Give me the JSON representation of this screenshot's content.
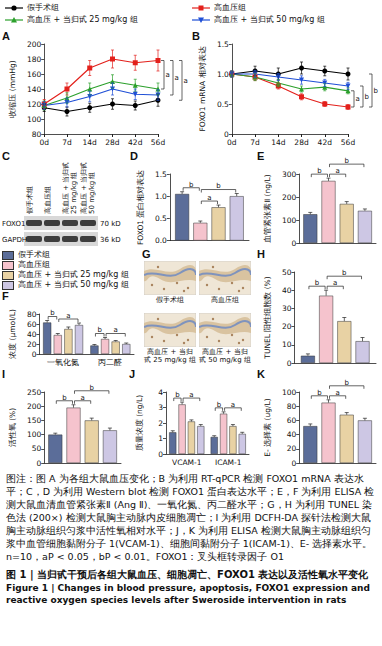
{
  "chart_data": [
    {
      "panel": "A",
      "type": "line",
      "y_label": "收缩压 (mmHg)",
      "categories": [
        "0d",
        "7d",
        "14d",
        "28d",
        "42d",
        "56d"
      ],
      "series": [
        {
          "name": "假手术组",
          "color": "#000000",
          "marker": "circle",
          "values": [
            115,
            110,
            115,
            120,
            118,
            125
          ],
          "errors": [
            5,
            6,
            6,
            7,
            6,
            8
          ]
        },
        {
          "name": "高血压组",
          "color": "#e3211c",
          "marker": "square",
          "values": [
            120,
            140,
            168,
            180,
            175,
            178
          ],
          "errors": [
            6,
            8,
            10,
            12,
            10,
            14
          ]
        },
        {
          "name": "高血压 + 当归甙 25 mg/kg 组",
          "color": "#2ca02c",
          "marker": "triangle",
          "values": [
            118,
            128,
            140,
            150,
            145,
            140
          ],
          "errors": [
            6,
            7,
            8,
            9,
            8,
            8
          ]
        },
        {
          "name": "高血压 + 当归甙 50 mg/kg 组",
          "color": "#1f4fd6",
          "marker": "triangle-down",
          "values": [
            118,
            122,
            130,
            140,
            133,
            132
          ],
          "errors": [
            5,
            6,
            7,
            8,
            7,
            7
          ]
        }
      ],
      "ylim": [
        80,
        200
      ],
      "yticks": [
        80,
        100,
        120,
        140,
        160,
        180,
        200
      ],
      "grid": false,
      "legend": "top",
      "significance": [
        {
          "series": [
            1,
            2
          ],
          "label": "a"
        },
        {
          "series": [
            1,
            3
          ],
          "label": "a"
        },
        {
          "series": [
            0,
            1
          ],
          "label": "a"
        }
      ]
    },
    {
      "panel": "B",
      "type": "line",
      "y_label": "FOXO1 mRNA 相对表达",
      "categories": [
        "0d",
        "7d",
        "14d",
        "28d",
        "42d",
        "56d"
      ],
      "series": [
        {
          "name": "假手术组",
          "color": "#000000",
          "marker": "circle",
          "values": [
            1.0,
            1.05,
            1.0,
            1.1,
            1.05,
            1.0
          ],
          "errors": [
            0.05,
            0.08,
            0.1,
            0.1,
            0.08,
            0.1
          ]
        },
        {
          "name": "高血压组",
          "color": "#e3211c",
          "marker": "square",
          "values": [
            1.0,
            0.95,
            0.8,
            0.62,
            0.5,
            0.45
          ],
          "errors": [
            0.05,
            0.06,
            0.05,
            0.05,
            0.04,
            0.04
          ]
        },
        {
          "name": "高血压 + 当归甙 25 mg/kg 组",
          "color": "#2ca02c",
          "marker": "triangle",
          "values": [
            1.0,
            0.95,
            0.85,
            0.75,
            0.78,
            0.72
          ],
          "errors": [
            0.05,
            0.06,
            0.06,
            0.05,
            0.06,
            0.05
          ]
        },
        {
          "name": "高血压 + 当归甙 50 mg/kg 组",
          "color": "#1f4fd6",
          "marker": "triangle-down",
          "values": [
            1.0,
            1.0,
            0.95,
            0.9,
            0.85,
            0.8
          ],
          "errors": [
            0.05,
            0.06,
            0.06,
            0.07,
            0.06,
            0.06
          ]
        }
      ],
      "ylim": [
        0,
        1.5
      ],
      "yticks": [
        0,
        0.5,
        {
          "value": 1,
          "label": "1.0"
        },
        1.5
      ],
      "grid": false,
      "significance": [
        {
          "series": [
            1,
            2
          ],
          "label": "a"
        },
        {
          "series": [
            1,
            3
          ],
          "label": "b"
        },
        {
          "series": [
            0,
            1
          ],
          "label": "b"
        }
      ]
    },
    {
      "panel": "D",
      "type": "bar",
      "y_label": "FOXO1 蛋白相对表达",
      "categories": [
        null
      ],
      "tick_labels": "y",
      "series": [
        {
          "name": "假手术组",
          "color": "#5b6d99",
          "values": [
            1.05
          ],
          "errors": [
            0.05
          ]
        },
        {
          "name": "高血压组",
          "color": "#f5c3cd",
          "values": [
            0.4
          ],
          "errors": [
            0.04
          ]
        },
        {
          "name": "高血压 + 当归甙 25 mg/kg 组",
          "color": "#e8d2a4",
          "values": [
            0.75
          ],
          "errors": [
            0.05
          ]
        },
        {
          "name": "高血压 + 当归甙 50 mg/kg 组",
          "color": "#cdc7e4",
          "values": [
            1.0
          ],
          "errors": [
            0.06
          ]
        }
      ],
      "ylim": [
        0,
        1.5
      ],
      "yticks": [
        {
          "value": 0,
          "label": "0.0"
        },
        0.5,
        {
          "value": 1,
          "label": "1.0"
        },
        1.5
      ],
      "grid": false,
      "significance": [
        {
          "category": 0,
          "bars": [
            0,
            1
          ],
          "label": "b"
        },
        {
          "category": 0,
          "bars": [
            1,
            2
          ],
          "label": "a"
        },
        {
          "category": 0,
          "bars": [
            1,
            3
          ],
          "label": "b"
        }
      ]
    },
    {
      "panel": "E",
      "type": "bar",
      "y_label": "血管紧张素Ⅱ (ng/L)",
      "categories": [
        null
      ],
      "tick_labels": "y",
      "series": [
        {
          "name": "假手术组",
          "color": "#5b6d99",
          "values": [
            125
          ],
          "errors": [
            8
          ]
        },
        {
          "name": "高血压组",
          "color": "#f5c3cd",
          "values": [
            270
          ],
          "errors": [
            12
          ]
        },
        {
          "name": "高血压 + 当归甙 25 mg/kg 组",
          "color": "#e8d2a4",
          "values": [
            170
          ],
          "errors": [
            10
          ]
        },
        {
          "name": "高血压 + 当归甙 50 mg/kg 组",
          "color": "#cdc7e4",
          "values": [
            140
          ],
          "errors": [
            8
          ]
        }
      ],
      "ylim": [
        0,
        300
      ],
      "yticks": [
        0,
        100,
        200,
        300
      ],
      "grid": false,
      "significance": [
        {
          "category": 0,
          "bars": [
            0,
            1
          ],
          "label": "b"
        },
        {
          "category": 0,
          "bars": [
            1,
            2
          ],
          "label": "a"
        },
        {
          "category": 0,
          "bars": [
            1,
            3
          ],
          "label": "b"
        }
      ]
    },
    {
      "panel": "F",
      "type": "bar",
      "y_label": "浓度 (μmol/L)",
      "categories": [
        "一氧化氮",
        "丙二醛"
      ],
      "legend": "top",
      "series": [
        {
          "name": "假手术组",
          "color": "#5b6d99",
          "values": [
            63,
            17
          ],
          "errors": [
            4,
            2
          ]
        },
        {
          "name": "高血压组",
          "color": "#f5c3cd",
          "values": [
            38,
            30
          ],
          "errors": [
            3,
            3
          ]
        },
        {
          "name": "高血压 + 当归甙 25 mg/kg 组",
          "color": "#e8d2a4",
          "values": [
            50,
            25
          ],
          "errors": [
            4,
            2
          ]
        },
        {
          "name": "高血压 + 当归甙 50 mg/kg 组",
          "color": "#cdc7e4",
          "values": [
            58,
            20
          ],
          "errors": [
            4,
            2
          ]
        }
      ],
      "ylim": [
        0,
        80
      ],
      "yticks": [
        0,
        20,
        40,
        60,
        80
      ],
      "grid": false,
      "significance": [
        {
          "category": 0,
          "bars": [
            0,
            1
          ],
          "label": "b"
        },
        {
          "category": 0,
          "bars": [
            1,
            3
          ],
          "label": "a"
        },
        {
          "category": 1,
          "bars": [
            0,
            1
          ],
          "label": "b"
        },
        {
          "category": 1,
          "bars": [
            1,
            3
          ],
          "label": "a"
        }
      ]
    },
    {
      "panel": "H",
      "type": "bar",
      "y_label": "TUNEL 阳性细胞数 (%)",
      "categories": [
        null
      ],
      "tick_labels": "y",
      "series": [
        {
          "name": "假手术组",
          "color": "#5b6d99",
          "values": [
            4
          ],
          "errors": [
            1
          ]
        },
        {
          "name": "高血压组",
          "color": "#f5c3cd",
          "values": [
            37
          ],
          "errors": [
            3
          ]
        },
        {
          "name": "高血压 + 当归甙 25 mg/kg 组",
          "color": "#e8d2a4",
          "values": [
            23
          ],
          "errors": [
            2
          ]
        },
        {
          "name": "高血压 + 当归甙 50 mg/kg 组",
          "color": "#cdc7e4",
          "values": [
            12
          ],
          "errors": [
            2
          ]
        }
      ],
      "ylim": [
        0,
        50
      ],
      "yticks": [
        0,
        10,
        20,
        30,
        40,
        50
      ],
      "grid": false,
      "significance": [
        {
          "category": 0,
          "bars": [
            0,
            1
          ],
          "label": "b"
        },
        {
          "category": 0,
          "bars": [
            1,
            2
          ],
          "label": "a"
        },
        {
          "category": 0,
          "bars": [
            1,
            3
          ],
          "label": "b"
        }
      ]
    },
    {
      "panel": "I",
      "type": "bar",
      "y_label": "活性氧 (%)",
      "categories": [
        null
      ],
      "tick_labels": "y",
      "series": [
        {
          "name": "假手术组",
          "color": "#5b6d99",
          "values": [
            100
          ],
          "errors": [
            5
          ]
        },
        {
          "name": "高血压组",
          "color": "#f5c3cd",
          "values": [
            195
          ],
          "errors": [
            10
          ]
        },
        {
          "name": "高血压 + 当归甙 25 mg/kg 组",
          "color": "#e8d2a4",
          "values": [
            150
          ],
          "errors": [
            8
          ]
        },
        {
          "name": "高血压 + 当归甙 50 mg/kg 组",
          "color": "#cdc7e4",
          "values": [
            115
          ],
          "errors": [
            8
          ]
        }
      ],
      "ylim": [
        0,
        250
      ],
      "yticks": [
        0,
        50,
        100,
        150,
        200,
        250
      ],
      "grid": false,
      "significance": [
        {
          "category": 0,
          "bars": [
            0,
            1
          ],
          "label": "b"
        },
        {
          "category": 0,
          "bars": [
            1,
            2
          ],
          "label": "a"
        },
        {
          "category": 0,
          "bars": [
            1,
            3
          ],
          "label": "b"
        }
      ]
    },
    {
      "panel": "J",
      "type": "bar",
      "y_label": "质量浓度 (ng/L)",
      "categories": [
        "VCAM-1",
        "ICAM-1"
      ],
      "series": [
        {
          "name": "假手术组",
          "color": "#5b6d99",
          "values": [
            1.4,
            1.1
          ],
          "errors": [
            0.1,
            0.08
          ]
        },
        {
          "name": "高血压组",
          "color": "#f5c3cd",
          "values": [
            3.2,
            2.6
          ],
          "errors": [
            0.15,
            0.12
          ]
        },
        {
          "name": "高血压 + 当归甙 25 mg/kg 组",
          "color": "#e8d2a4",
          "values": [
            2.1,
            1.8
          ],
          "errors": [
            0.1,
            0.1
          ]
        },
        {
          "name": "高血压 + 当归甙 50 mg/kg 组",
          "color": "#cdc7e4",
          "values": [
            1.8,
            1.3
          ],
          "errors": [
            0.1,
            0.1
          ]
        }
      ],
      "ylim": [
        0,
        4
      ],
      "yticks": [
        0,
        1,
        2,
        3,
        4
      ],
      "grid": false,
      "significance": [
        {
          "category": 0,
          "bars": [
            0,
            1
          ],
          "label": "b"
        },
        {
          "category": 0,
          "bars": [
            1,
            3
          ],
          "label": "a"
        },
        {
          "category": 1,
          "bars": [
            0,
            1
          ],
          "label": "b"
        },
        {
          "category": 1,
          "bars": [
            1,
            3
          ],
          "label": "a"
        }
      ]
    },
    {
      "panel": "K",
      "type": "bar",
      "y_label": "E- 选择素 (ug/L)",
      "categories": [
        null
      ],
      "tick_labels": "y",
      "series": [
        {
          "name": "假手术组",
          "color": "#5b6d99",
          "values": [
            52
          ],
          "errors": [
            3
          ]
        },
        {
          "name": "高血压组",
          "color": "#f5c3cd",
          "values": [
            85
          ],
          "errors": [
            4
          ]
        },
        {
          "name": "高血压 + 当归甙 25 mg/kg 组",
          "color": "#e8d2a4",
          "values": [
            68
          ],
          "errors": [
            3
          ]
        },
        {
          "name": "高血压 + 当归甙 50 mg/kg 组",
          "color": "#cdc7e4",
          "values": [
            60
          ],
          "errors": [
            3
          ]
        }
      ],
      "ylim": [
        0,
        100
      ],
      "yticks": [
        0,
        20,
        40,
        60,
        80,
        100
      ],
      "grid": false,
      "significance": [
        {
          "category": 0,
          "bars": [
            0,
            1
          ],
          "label": "b"
        },
        {
          "category": 0,
          "bars": [
            1,
            2
          ],
          "label": "a"
        },
        {
          "category": 0,
          "bars": [
            1,
            3
          ],
          "label": "b"
        }
      ]
    }
  ],
  "western_blot": {
    "panel": "C",
    "lanes": [
      "假手术组",
      "高血压组",
      "高血压 + 当归甙 25 mg/kg 组",
      "高血压 + 当归甙 50 mg/kg 组"
    ],
    "rows": [
      {
        "protein": "FOXO1",
        "size": "70 kD"
      },
      {
        "protein": "GAPDH",
        "size": "36 kD"
      }
    ]
  },
  "tunel": {
    "panel": "G",
    "labels": [
      "假手术组",
      "高血压组",
      "高血压 + 当归甙 25 mg/kg 组",
      "高血压 + 当归甙 50 mg/kg 组"
    ]
  },
  "caption": {
    "note": "图注：图 A 为各组大鼠血压变化；B 为利用 RT-qPCR 检测 FOXO1 mRNA 表达水平；C，D 为利用 Western blot 检测 FOXO1 蛋白表达水平；E，F 为利用 ELISA 检测大鼠血清血管紧张素Ⅱ (Ang Ⅱ)、一氧化氮、丙二醛水平；G，H 为利用 TUNEL 染色法 (200×) 检测大鼠胸主动脉内皮细胞凋亡；I 为利用 DCFH-DA 探针法检测大鼠胸主动脉组织匀浆中活性氧相对水平；J，K 为利用 ELISA 检测大鼠胸主动脉组织匀浆中血管细胞黏附分子 1(VCAM-1)、细胞间黏附分子 1(ICAM-1)、E- 选择素水平。n=10，aP < 0.05，bP < 0.01。FOXO1：叉头框转录因子 O1",
    "title_cn": "图 1 | 当归甙干预后各组大鼠血压、细胞凋亡、FOXO1 表达以及活性氧水平变化",
    "title_en": "Figure 1 | Changes in blood pressure, apoptosis, FOXO1 expression and reactive oxygen species levels after Sweroside intervention in rats"
  }
}
